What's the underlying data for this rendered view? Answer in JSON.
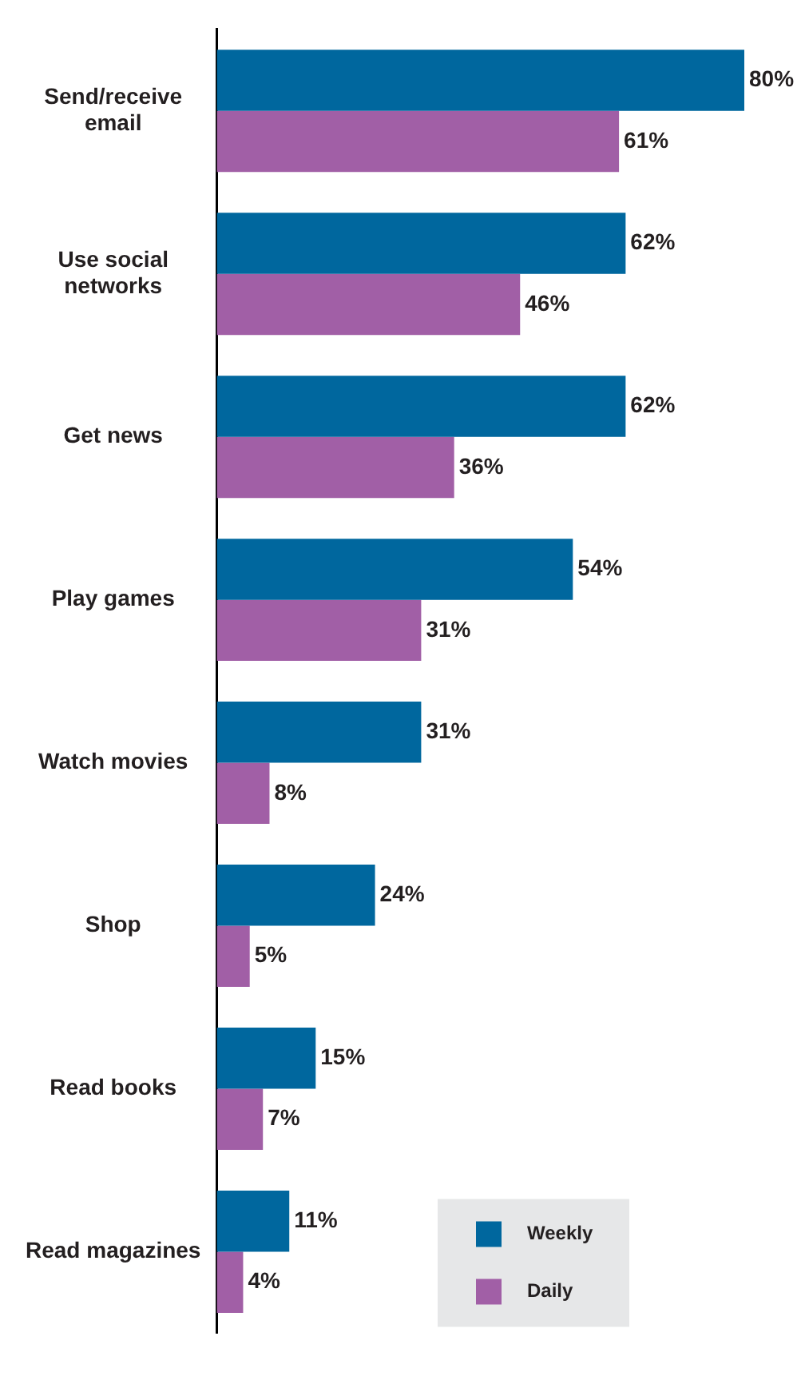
{
  "chart_data": {
    "type": "bar",
    "orientation": "horizontal",
    "categories": [
      "Send/receive email",
      "Use social networks",
      "Get news",
      "Play games",
      "Watch movies",
      "Shop",
      "Read books",
      "Read magazines"
    ],
    "series": [
      {
        "name": "Weekly",
        "color": "#00679e",
        "values": [
          80,
          62,
          62,
          54,
          31,
          24,
          15,
          11
        ],
        "value_labels": [
          "80%",
          "62%",
          "62%",
          "54%",
          "31%",
          "24%",
          "15%",
          "11%"
        ]
      },
      {
        "name": "Daily",
        "color": "#a15fa6",
        "values": [
          61,
          46,
          36,
          31,
          8,
          5,
          7,
          4
        ],
        "value_labels": [
          "61%",
          "46%",
          "36%",
          "31%",
          "8%",
          "5%",
          "7%",
          "4%"
        ]
      }
    ],
    "legend": "bottom right"
  }
}
